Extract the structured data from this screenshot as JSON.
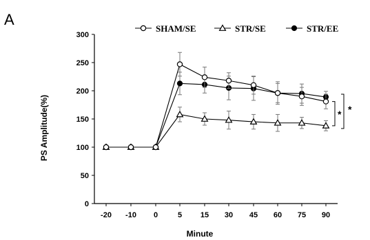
{
  "panel_label": "A",
  "chart_data": {
    "type": "line",
    "title": "",
    "xlabel": "Minute",
    "ylabel": "PS Amplitude(%)",
    "categories": [
      "-20",
      "-10",
      "0",
      "5",
      "15",
      "30",
      "45",
      "60",
      "75",
      "90"
    ],
    "ylim": [
      0,
      300
    ],
    "yticks": [
      0,
      50,
      100,
      150,
      200,
      250,
      300
    ],
    "grid": false,
    "legend_position": "top",
    "series": [
      {
        "name": "SHAM/SE",
        "marker": "open-circle",
        "values": [
          100,
          100,
          100,
          247,
          224,
          218,
          210,
          196,
          190,
          181
        ],
        "errors": [
          0,
          0,
          0,
          21,
          18,
          14,
          16,
          17,
          16,
          13
        ]
      },
      {
        "name": "STR/SE",
        "marker": "open-triangle",
        "values": [
          100,
          100,
          100,
          158,
          150,
          148,
          145,
          143,
          143,
          138
        ],
        "errors": [
          0,
          0,
          0,
          13,
          11,
          16,
          13,
          15,
          10,
          9
        ]
      },
      {
        "name": "STR/EE",
        "marker": "filled-circle",
        "values": [
          100,
          100,
          100,
          213,
          211,
          205,
          204,
          196,
          195,
          189
        ],
        "errors": [
          0,
          0,
          0,
          20,
          15,
          21,
          21,
          20,
          17,
          10
        ]
      }
    ],
    "significance": [
      "*",
      "*"
    ]
  }
}
